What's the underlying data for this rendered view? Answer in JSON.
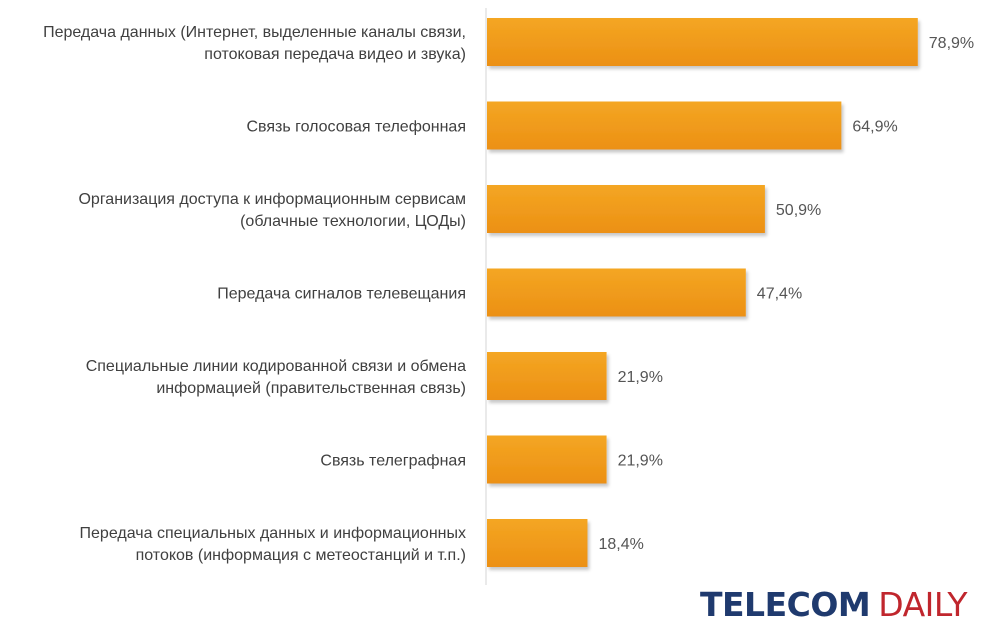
{
  "chart_data": {
    "type": "bar",
    "orientation": "horizontal",
    "categories": [
      [
        "Передача данных (Интернет, выделенные каналы связи,",
        "потоковая передача видео и звука)"
      ],
      [
        "Связь голосовая телефонная"
      ],
      [
        "Организация доступа к информационным сервисам",
        "(облачные технологии, ЦОДы)"
      ],
      [
        "Передача сигналов телевещания"
      ],
      [
        "Специальные линии кодированной связи и обмена",
        "информацией (правительственная связь)"
      ],
      [
        "Связь телеграфная"
      ],
      [
        "Передача специальных данных и информационных",
        "потоков (информация с метеостанций и т.п.)"
      ]
    ],
    "values": [
      78.9,
      64.9,
      50.9,
      47.4,
      21.9,
      21.9,
      18.4
    ],
    "value_labels": [
      "78,9%",
      "64,9%",
      "50,9%",
      "47,4%",
      "21,9%",
      "21,9%",
      "18,4%"
    ],
    "xlim": [
      0,
      100
    ],
    "grid": false,
    "legend": "none",
    "bar_color": "#f09a1a",
    "bar_color_dark": "#d98a10"
  },
  "logo": {
    "word1": "TELECOM",
    "word2": "DAILY",
    "color1": "#1f3a6e",
    "color2": "#c0262d"
  }
}
